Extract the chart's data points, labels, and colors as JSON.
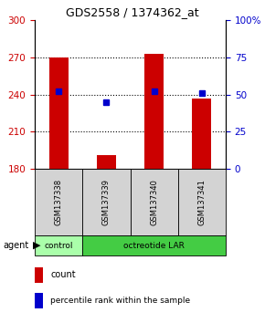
{
  "title": "GDS2558 / 1374362_at",
  "samples": [
    "GSM137338",
    "GSM137339",
    "GSM137340",
    "GSM137341"
  ],
  "counts": [
    270,
    191,
    273,
    237
  ],
  "percentiles": [
    52,
    45,
    52,
    51
  ],
  "ymin": 180,
  "ymax": 300,
  "yticks_left": [
    180,
    210,
    240,
    270,
    300
  ],
  "yticks_right": [
    0,
    25,
    50,
    75,
    100
  ],
  "bar_color": "#cc0000",
  "dot_color": "#0000cc",
  "control_color": "#aaffaa",
  "oct_color": "#44cc44",
  "bg_plot": "#ffffff",
  "bg_sample": "#d3d3d3",
  "left_axis_color": "#cc0000",
  "right_axis_color": "#0000cc",
  "grid_color": "#000000",
  "legend_count_color": "#cc0000",
  "legend_pct_color": "#0000cc"
}
